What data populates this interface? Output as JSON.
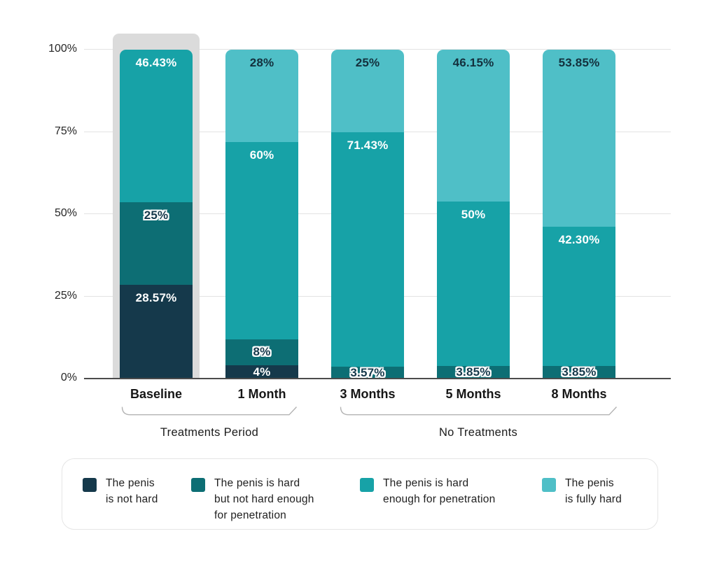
{
  "chart_data": {
    "type": "bar",
    "variant": "stacked-percent-column",
    "title": "",
    "xlabel": "",
    "ylabel": "",
    "ylim": [
      0,
      100
    ],
    "grid": true,
    "legend_position": "bottom",
    "y_ticks": [
      {
        "pct": 0,
        "label": "0%"
      },
      {
        "pct": 25,
        "label": "25%"
      },
      {
        "pct": 50,
        "label": "50%"
      },
      {
        "pct": 75,
        "label": "75%"
      },
      {
        "pct": 100,
        "label": "100%"
      }
    ],
    "categories": [
      "Baseline",
      "1 Month",
      "3 Months",
      "5 Months",
      "8 Months"
    ],
    "series": [
      {
        "name": "The penis is not hard",
        "legend_lines": "The penis\nis not hard",
        "color": "#15394B",
        "values": [
          28.57,
          4,
          0,
          0,
          0
        ]
      },
      {
        "name": "The penis is hard but not hard enough for penetration",
        "legend_lines": "The penis is hard\nbut not hard enough\nfor penetration",
        "color": "#0D6E74",
        "values": [
          25,
          8,
          3.57,
          3.85,
          3.85
        ]
      },
      {
        "name": "The penis is hard enough for penetration",
        "legend_lines": "The penis is hard\nenough for penetration",
        "color": "#17A2A7",
        "values": [
          46.43,
          60,
          71.43,
          50,
          42.3
        ]
      },
      {
        "name": "The penis is fully hard",
        "legend_lines": "The penis\nis fully hard",
        "color": "#4FBFC7",
        "values": [
          0,
          28,
          25,
          46.15,
          53.85
        ]
      }
    ],
    "bars": [
      {
        "category": "Baseline",
        "highlighted": true,
        "segments": [
          {
            "series": 0,
            "value": 28.57,
            "label": "28.57%",
            "label_style": "light",
            "label_pos": "top"
          },
          {
            "series": 1,
            "value": 25,
            "label": "25%",
            "label_style": "outlined",
            "label_pos": "top"
          },
          {
            "series": 2,
            "value": 46.43,
            "label": "46.43%",
            "label_style": "light",
            "label_pos": "top"
          }
        ]
      },
      {
        "category": "1 Month",
        "highlighted": false,
        "segments": [
          {
            "series": 0,
            "value": 4,
            "label": "4%",
            "label_style": "light",
            "label_pos": "center"
          },
          {
            "series": 1,
            "value": 8,
            "label": "8%",
            "label_style": "outlined",
            "label_pos": "center"
          },
          {
            "series": 2,
            "value": 60,
            "label": "60%",
            "label_style": "light",
            "label_pos": "top"
          },
          {
            "series": 3,
            "value": 28,
            "label": "28%",
            "label_style": "dark",
            "label_pos": "top"
          }
        ]
      },
      {
        "category": "3 Months",
        "highlighted": false,
        "segments": [
          {
            "series": 1,
            "value": 3.57,
            "label": "3.57%",
            "label_style": "outlined",
            "label_pos": "center"
          },
          {
            "series": 2,
            "value": 71.43,
            "label": "71.43%",
            "label_style": "light",
            "label_pos": "top"
          },
          {
            "series": 3,
            "value": 25,
            "label": "25%",
            "label_style": "dark",
            "label_pos": "top"
          }
        ]
      },
      {
        "category": "5 Months",
        "highlighted": false,
        "segments": [
          {
            "series": 1,
            "value": 3.85,
            "label": "3.85%",
            "label_style": "outlined",
            "label_pos": "center"
          },
          {
            "series": 2,
            "value": 50,
            "label": "50%",
            "label_style": "light",
            "label_pos": "top"
          },
          {
            "series": 3,
            "value": 46.15,
            "label": "46.15%",
            "label_style": "dark",
            "label_pos": "top"
          }
        ]
      },
      {
        "category": "8 Months",
        "highlighted": false,
        "segments": [
          {
            "series": 1,
            "value": 3.85,
            "label": "3.85%",
            "label_style": "outlined",
            "label_pos": "center"
          },
          {
            "series": 2,
            "value": 42.3,
            "label": "42.30%",
            "label_style": "light",
            "label_pos": "top"
          },
          {
            "series": 3,
            "value": 53.85,
            "label": "53.85%",
            "label_style": "dark",
            "label_pos": "top"
          }
        ]
      }
    ],
    "groups": [
      {
        "label": "Treatments Period",
        "categories": [
          "Baseline",
          "1 Month"
        ]
      },
      {
        "label": "No Treatments",
        "categories": [
          "3 Months",
          "5 Months",
          "8 Months"
        ]
      }
    ],
    "highlighted_category": "Baseline"
  },
  "colors": {
    "not_hard": "#15394B",
    "hard_not_enough": "#0D6E74",
    "hard_enough": "#17A2A7",
    "fully_hard": "#4FBFC7",
    "highlight_band": "#dbdbdb",
    "gridline": "#e3e3e3",
    "axis_line": "#4c4c4c",
    "bracket": "#b3b3b3"
  }
}
